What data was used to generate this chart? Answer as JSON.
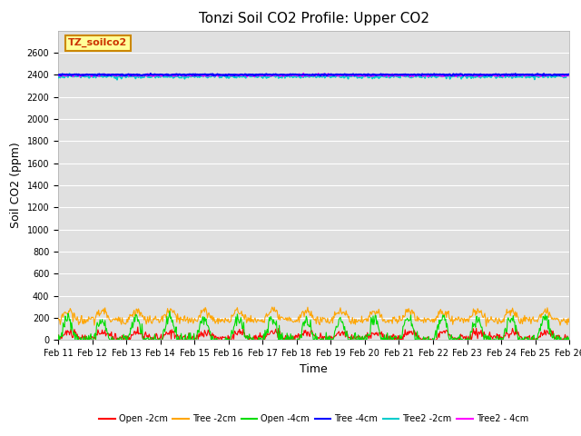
{
  "title": "Tonzi Soil CO2 Profile: Upper CO2",
  "xlabel": "Time",
  "ylabel": "Soil CO2 (ppm)",
  "ylim": [
    0,
    2800
  ],
  "yticks": [
    0,
    200,
    400,
    600,
    800,
    1000,
    1200,
    1400,
    1600,
    1800,
    2000,
    2200,
    2400,
    2600
  ],
  "n_points": 720,
  "legend_label": "TZ_soilco2",
  "series": {
    "Open_2cm": {
      "color": "#ff0000",
      "lw": 0.8,
      "label": "Open -2cm"
    },
    "Tree_2cm": {
      "color": "#ffa500",
      "lw": 0.8,
      "label": "Tree -2cm"
    },
    "Open_4cm": {
      "color": "#00dd00",
      "lw": 0.8,
      "label": "Open -4cm"
    },
    "Tree_4cm": {
      "color": "#0000ff",
      "lw": 1.5,
      "label": "Tree -4cm"
    },
    "Tree2_2cm": {
      "color": "#00cccc",
      "lw": 1.2,
      "label": "Tree2 -2cm"
    },
    "Tree2_4cm": {
      "color": "#ff00ff",
      "lw": 1.2,
      "label": "Tree2 - 4cm"
    }
  },
  "bg_color": "#e0e0e0",
  "title_fontsize": 11,
  "axis_label_fontsize": 9,
  "tick_fontsize": 7,
  "legend_box_color": "#ffff99",
  "legend_box_edge": "#cc8800"
}
